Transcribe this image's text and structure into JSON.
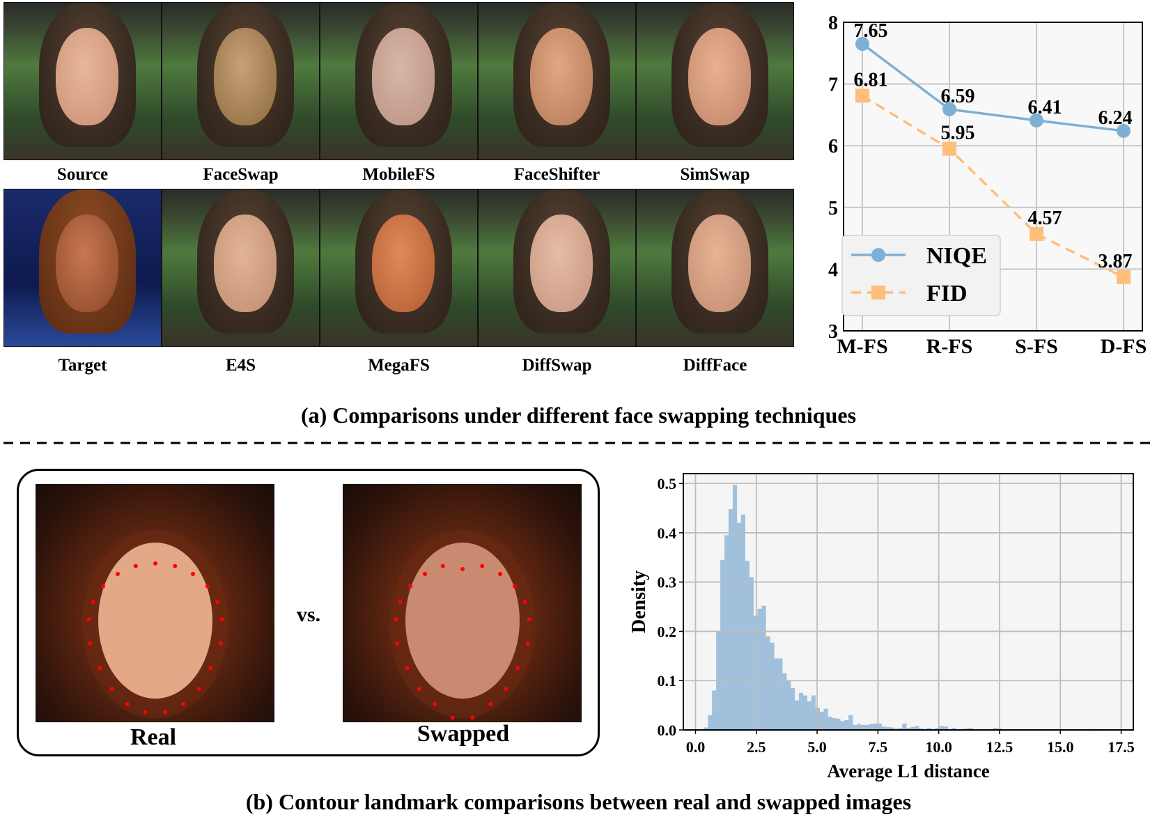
{
  "panel_a": {
    "row1_labels": [
      "Source",
      "FaceSwap",
      "MobileFS",
      "FaceShifter",
      "SimSwap"
    ],
    "row2_labels": [
      "Target",
      "E4S",
      "MegaFS",
      "DiffSwap",
      "DiffFace"
    ],
    "caption": "(a) Comparisons under different face swapping techniques"
  },
  "panel_b": {
    "real_label": "Real",
    "vs_label": "vs.",
    "swapped_label": "Swapped",
    "landmark_color": "#ff0000",
    "caption": "(b) Contour landmark comparisons between real and swapped images"
  },
  "chart_data": [
    {
      "type": "line",
      "categories": [
        "M-FS",
        "R-FS",
        "S-FS",
        "D-FS"
      ],
      "series": [
        {
          "name": "NIQE",
          "values": [
            7.65,
            6.59,
            6.41,
            6.24
          ],
          "labels": [
            "7.65",
            "6.59",
            "6.41",
            "6.24"
          ],
          "color": "#7eb0d5",
          "marker": "circle",
          "linestyle": "solid"
        },
        {
          "name": "FID",
          "values": [
            6.81,
            5.95,
            4.57,
            3.87
          ],
          "labels": [
            "6.81",
            "5.95",
            "4.57",
            "3.87"
          ],
          "color": "#ffbe7a",
          "marker": "square",
          "linestyle": "dashed"
        }
      ],
      "ylim": [
        3,
        8
      ],
      "yticks": [
        "3",
        "4",
        "5",
        "6",
        "7",
        "8"
      ],
      "grid": true,
      "legend": "lower-left"
    },
    {
      "type": "bar",
      "subtype": "histogram",
      "xlabel": "Average L1 distance",
      "ylabel": "Density",
      "xlim": [
        -0.5,
        18
      ],
      "ylim": [
        0,
        0.52
      ],
      "xticks": [
        "0.0",
        "2.5",
        "5.0",
        "7.5",
        "10.0",
        "12.5",
        "15.0",
        "17.5"
      ],
      "yticks": [
        "0.0",
        "0.1",
        "0.2",
        "0.3",
        "0.4",
        "0.5"
      ],
      "grid": true,
      "color": "#a0c0dc",
      "bin_start": 0.34,
      "bin_width": 0.17,
      "values": [
        0.005,
        0.03,
        0.08,
        0.2,
        0.345,
        0.395,
        0.448,
        0.497,
        0.42,
        0.437,
        0.343,
        0.31,
        0.232,
        0.246,
        0.252,
        0.19,
        0.177,
        0.145,
        0.145,
        0.115,
        0.101,
        0.085,
        0.06,
        0.075,
        0.07,
        0.058,
        0.07,
        0.045,
        0.037,
        0.043,
        0.027,
        0.024,
        0.023,
        0.018,
        0.02,
        0.03,
        0.01,
        0.012,
        0.01,
        0.01,
        0.012,
        0.013,
        0.013,
        0.007,
        0.006,
        0.005,
        0.003,
        0.004,
        0.013,
        0.004,
        0.006,
        0.008,
        0.003,
        0.002,
        0.004,
        0.002,
        0.004,
        0.008,
        0.007,
        0.002,
        0.004,
        0.001,
        0.002,
        0.003,
        0.004,
        0.001,
        0.002,
        0.001,
        0.001,
        0.002,
        0.004,
        0.003,
        0.001,
        0.001,
        0.001,
        0.001,
        0,
        0.001,
        0,
        0.001,
        0,
        0.001,
        0,
        0.001,
        0,
        0,
        0.001,
        0,
        0,
        0.001,
        0,
        0,
        0,
        0.002,
        0.002,
        0.001
      ]
    }
  ]
}
